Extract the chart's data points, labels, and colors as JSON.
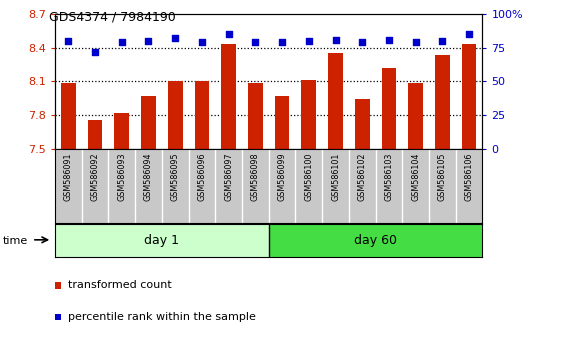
{
  "title": "GDS4374 / 7984190",
  "samples": [
    "GSM586091",
    "GSM586092",
    "GSM586093",
    "GSM586094",
    "GSM586095",
    "GSM586096",
    "GSM586097",
    "GSM586098",
    "GSM586099",
    "GSM586100",
    "GSM586101",
    "GSM586102",
    "GSM586103",
    "GSM586104",
    "GSM586105",
    "GSM586106"
  ],
  "red_values": [
    8.09,
    7.76,
    7.82,
    7.97,
    8.1,
    8.1,
    8.43,
    8.09,
    7.97,
    8.11,
    8.35,
    7.94,
    8.22,
    8.09,
    8.34,
    8.43
  ],
  "blue_values": [
    80,
    72,
    79,
    80,
    82,
    79,
    85,
    79,
    79,
    80,
    81,
    79,
    81,
    79,
    80,
    85
  ],
  "ylim_left": [
    7.5,
    8.7
  ],
  "ylim_right": [
    0,
    100
  ],
  "yticks_left": [
    7.5,
    7.8,
    8.1,
    8.4,
    8.7
  ],
  "yticks_right": [
    0,
    25,
    50,
    75,
    100
  ],
  "yticklabels_right": [
    "0",
    "25",
    "50",
    "75",
    "100%"
  ],
  "day1_samples": 8,
  "day60_samples": 8,
  "bar_color": "#cc2200",
  "dot_color": "#0000cc",
  "day1_color": "#ccffcc",
  "day60_color": "#44dd44",
  "bg_color": "#ffffff",
  "tick_area_color": "#c8c8c8",
  "dotted_gridlines": [
    7.8,
    8.1,
    8.4
  ]
}
